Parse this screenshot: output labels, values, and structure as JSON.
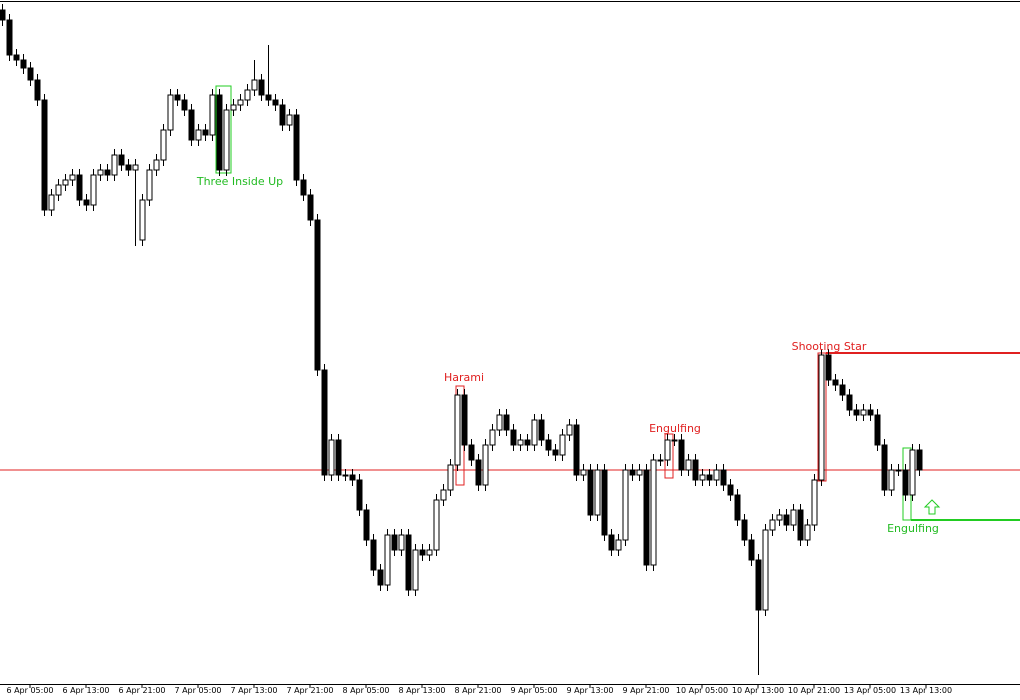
{
  "chart_data": {
    "type": "candlestick",
    "x_labels": [
      "6 Apr 05:00",
      "6 Apr 13:00",
      "6 Apr 21:00",
      "7 Apr 05:00",
      "7 Apr 13:00",
      "7 Apr 21:00",
      "8 Apr 05:00",
      "8 Apr 13:00",
      "8 Apr 21:00",
      "9 Apr 05:00",
      "9 Apr 13:00",
      "9 Apr 21:00",
      "10 Apr 05:00",
      "10 Apr 13:00",
      "10 Apr 21:00",
      "13 Apr 05:00",
      "13 Apr 13:00"
    ],
    "open": [
      690,
      680,
      645,
      640,
      632,
      620,
      600,
      490,
      505,
      515,
      520,
      525,
      500,
      495,
      525,
      530,
      525,
      545,
      535,
      530,
      460,
      500,
      530,
      540,
      570,
      605,
      600,
      590,
      560,
      570,
      565,
      605,
      530,
      590,
      595,
      600,
      610,
      620,
      605,
      600,
      595,
      575,
      585,
      520,
      505,
      480,
      330,
      225,
      260,
      225,
      225,
      220,
      190,
      160,
      130,
      115,
      165,
      150,
      165,
      110,
      150,
      145,
      150,
      200,
      210,
      235,
      305,
      255,
      240,
      215,
      255,
      270,
      285,
      270,
      255,
      260,
      255,
      280,
      260,
      250,
      245,
      265,
      275,
      225,
      230,
      185,
      230,
      165,
      150,
      160,
      230,
      225,
      230,
      135,
      240,
      240,
      260,
      260,
      230,
      240,
      220,
      225,
      220,
      230,
      215,
      205,
      180,
      160,
      140,
      90,
      170,
      180,
      185,
      175,
      190,
      160,
      175,
      220,
      345,
      320,
      315,
      305,
      290,
      285,
      290,
      285,
      255,
      210,
      230,
      230,
      205,
      250
    ],
    "high": [
      696,
      686,
      651,
      646,
      638,
      626,
      606,
      511,
      521,
      526,
      531,
      531,
      506,
      531,
      536,
      536,
      551,
      551,
      541,
      541,
      506,
      536,
      546,
      576,
      611,
      611,
      606,
      596,
      576,
      576,
      611,
      611,
      596,
      601,
      606,
      616,
      640,
      626,
      655,
      606,
      601,
      591,
      591,
      526,
      511,
      486,
      336,
      266,
      266,
      231,
      231,
      226,
      196,
      166,
      136,
      171,
      171,
      171,
      171,
      156,
      156,
      156,
      206,
      216,
      241,
      311,
      311,
      261,
      246,
      261,
      276,
      291,
      291,
      276,
      266,
      266,
      286,
      286,
      266,
      256,
      271,
      281,
      281,
      236,
      236,
      236,
      236,
      171,
      166,
      236,
      236,
      236,
      236,
      246,
      246,
      266,
      266,
      266,
      246,
      246,
      231,
      231,
      236,
      236,
      221,
      211,
      186,
      166,
      146,
      176,
      186,
      191,
      191,
      196,
      196,
      181,
      226,
      351,
      351,
      326,
      321,
      311,
      296,
      296,
      296,
      291,
      261,
      236,
      236,
      236,
      256,
      256
    ],
    "low": [
      674,
      639,
      634,
      626,
      614,
      594,
      484,
      484,
      499,
      509,
      514,
      494,
      489,
      489,
      519,
      519,
      519,
      529,
      524,
      454,
      454,
      494,
      524,
      534,
      564,
      594,
      584,
      554,
      554,
      559,
      559,
      524,
      524,
      584,
      589,
      594,
      604,
      599,
      594,
      589,
      569,
      569,
      514,
      499,
      474,
      324,
      219,
      219,
      219,
      219,
      214,
      184,
      154,
      124,
      109,
      109,
      144,
      144,
      104,
      104,
      139,
      139,
      144,
      194,
      204,
      229,
      249,
      234,
      209,
      209,
      249,
      264,
      264,
      249,
      249,
      249,
      249,
      254,
      244,
      239,
      239,
      259,
      219,
      219,
      179,
      179,
      159,
      144,
      144,
      154,
      219,
      219,
      129,
      129,
      234,
      234,
      254,
      224,
      224,
      214,
      214,
      214,
      214,
      209,
      199,
      174,
      154,
      134,
      25,
      84,
      164,
      174,
      169,
      169,
      154,
      154,
      169,
      214,
      314,
      309,
      299,
      284,
      279,
      279,
      279,
      249,
      204,
      204,
      224,
      199,
      199,
      224
    ],
    "close": [
      680,
      645,
      640,
      632,
      620,
      600,
      490,
      505,
      515,
      520,
      525,
      500,
      495,
      525,
      530,
      525,
      545,
      535,
      530,
      535,
      500,
      530,
      540,
      570,
      605,
      600,
      590,
      560,
      570,
      565,
      605,
      530,
      590,
      595,
      600,
      610,
      620,
      605,
      600,
      595,
      575,
      585,
      520,
      505,
      480,
      330,
      225,
      260,
      225,
      225,
      220,
      190,
      160,
      130,
      115,
      165,
      150,
      165,
      110,
      150,
      145,
      150,
      200,
      210,
      235,
      305,
      255,
      240,
      215,
      255,
      270,
      285,
      270,
      255,
      260,
      255,
      280,
      260,
      250,
      245,
      265,
      275,
      225,
      230,
      185,
      230,
      165,
      150,
      160,
      230,
      225,
      230,
      135,
      240,
      240,
      260,
      260,
      230,
      240,
      220,
      225,
      220,
      230,
      215,
      205,
      180,
      160,
      140,
      90,
      170,
      180,
      185,
      175,
      190,
      160,
      175,
      220,
      345,
      320,
      315,
      305,
      290,
      285,
      290,
      285,
      255,
      210,
      230,
      230,
      205,
      250,
      230
    ],
    "price_line": 230,
    "annotations": [
      "Three Inside Up",
      "Harami",
      "Engulfing",
      "Shooting Star",
      "Engulfing"
    ]
  }
}
